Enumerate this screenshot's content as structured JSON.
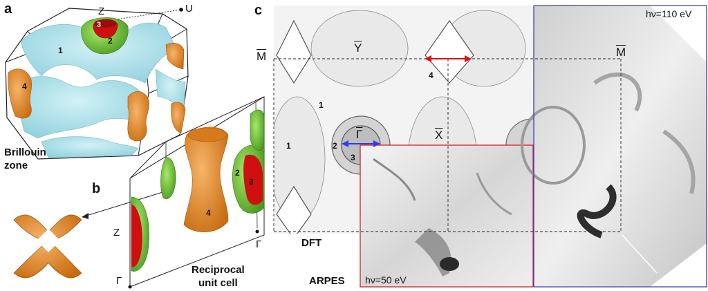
{
  "figure": {
    "panel_a": {
      "letter": "a",
      "caption_line1": "Brillouin",
      "caption_line2": "zone",
      "point_z": "Z",
      "point_u": "U",
      "sheet_labels": [
        "1",
        "2",
        "3",
        "4"
      ]
    },
    "panel_b": {
      "letter": "b",
      "caption_line1": "Reciprocal",
      "caption_line2": "unit cell",
      "point_z": "Z",
      "point_gamma_left": "Γ",
      "point_gamma_right": "Γ",
      "sheet_labels": [
        "2",
        "3",
        "4"
      ]
    },
    "panel_c": {
      "letter": "c",
      "label_dft": "DFT",
      "label_arpes": "ARPES",
      "photon_energy_left": "hν=50 eV",
      "photon_energy_right": "hν=110 eV",
      "point_m_left": "M",
      "point_m_right": "M",
      "point_y": "Y",
      "point_x": "X",
      "point_gamma": "Γ",
      "sheet_labels": [
        "1",
        "1",
        "2",
        "3",
        "4"
      ],
      "colors": {
        "arpes_50_frame": "#d62020",
        "arpes_110_frame": "#3b3bd0",
        "red_arrow": "#e01010",
        "blue_arrow": "#2a3cff"
      }
    },
    "colors": {
      "fermi_sheet_1": "#a8e0ea",
      "fermi_sheet_2": "#6cc93a",
      "fermi_sheet_3": "#d01010",
      "fermi_sheet_4": "#e8892a"
    }
  }
}
